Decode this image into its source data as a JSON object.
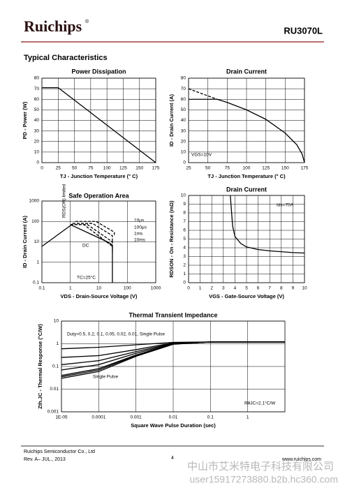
{
  "header": {
    "logo": "Ruichips",
    "logo_mark": "®",
    "part": "RU3070L"
  },
  "section_title": "Typical Characteristics",
  "chart_data": [
    {
      "type": "line",
      "title": "Power Dissipation",
      "xlabel": "TJ - Junction Temperature (° C)",
      "ylabel": "PD - Power (W)",
      "xlim": [
        0,
        175
      ],
      "ylim": [
        0,
        80
      ],
      "xticks": [
        0,
        25,
        50,
        75,
        100,
        125,
        150,
        175
      ],
      "yticks": [
        0,
        10,
        20,
        30,
        40,
        50,
        60,
        70,
        80
      ],
      "grid": true,
      "series": [
        {
          "color": "#000000",
          "x": [
            0,
            25,
            175
          ],
          "values": [
            71,
            71,
            0
          ]
        }
      ],
      "annotations": []
    },
    {
      "type": "line",
      "title": "Drain Current",
      "xlabel": "TJ - Junction Temperature (° C)",
      "ylabel": "ID - Drain Current (A)",
      "xlim": [
        25,
        175
      ],
      "ylim": [
        0,
        80
      ],
      "xticks": [
        25,
        50,
        75,
        100,
        125,
        150,
        175
      ],
      "yticks": [
        0,
        10,
        20,
        30,
        40,
        50,
        60,
        70,
        80
      ],
      "grid": true,
      "series": [
        {
          "color": "#000000",
          "x": [
            25,
            62,
            75,
            100,
            125,
            150,
            165,
            172,
            175
          ],
          "values": [
            60,
            60,
            57,
            50,
            41,
            28,
            17,
            8,
            0
          ]
        },
        {
          "color": "#000000",
          "style": "dashed",
          "x": [
            25,
            62
          ],
          "values": [
            70,
            60
          ]
        }
      ],
      "annotations": [
        "VGS=10V"
      ]
    },
    {
      "type": "line",
      "title": "Safe Operation Area",
      "xlabel": "VDS - Drain-Source Voltage (V)",
      "ylabel": "ID - Drain Current (A)",
      "xscale": "log",
      "yscale": "log",
      "xlim": [
        0.1,
        1000
      ],
      "ylim": [
        0.1,
        1000
      ],
      "xticks": [
        0.1,
        1,
        10,
        100,
        1000
      ],
      "yticks": [
        0.1,
        1,
        10,
        100,
        1000
      ],
      "grid": true,
      "series": [
        {
          "name": "RDS(ON) limited",
          "color": "#000000",
          "x": [
            0.1,
            1.2
          ],
          "values": [
            6,
            75
          ]
        },
        {
          "name": "10μs",
          "color": "#000000",
          "style": "dashed",
          "x": [
            1.5,
            8,
            35,
            35
          ],
          "values": [
            100,
            100,
            30,
            20
          ]
        },
        {
          "name": "100μs",
          "color": "#000000",
          "style": "dashed",
          "x": [
            1.2,
            6,
            30,
            30
          ],
          "values": [
            80,
            80,
            20,
            10
          ]
        },
        {
          "name": "1ms",
          "color": "#000000",
          "style": "dashed",
          "x": [
            1,
            4,
            30,
            30
          ],
          "values": [
            70,
            70,
            10,
            5
          ]
        },
        {
          "name": "10ms",
          "color": "#000000",
          "style": "dashed",
          "x": [
            1,
            3,
            30,
            30
          ],
          "values": [
            70,
            70,
            6,
            3
          ]
        },
        {
          "name": "DC",
          "color": "#000000",
          "x": [
            1,
            20,
            30,
            30
          ],
          "values": [
            70,
            10,
            7,
            0.1
          ]
        }
      ],
      "annotations": [
        "TC=25°C"
      ]
    },
    {
      "type": "line",
      "title": "Drain Current",
      "xlabel": "VGS - Gate-Source Voltage (V)",
      "ylabel": "RDSON - On - Resistance (mΩ)",
      "xlim": [
        0,
        10
      ],
      "ylim": [
        0,
        10
      ],
      "xticks": [
        0,
        1,
        2,
        3,
        4,
        5,
        6,
        7,
        8,
        9,
        10
      ],
      "yticks": [
        0,
        1,
        2,
        3,
        4,
        5,
        6,
        7,
        8,
        9,
        10
      ],
      "grid": true,
      "series": [
        {
          "color": "#000000",
          "x": [
            3.6,
            3.8,
            4,
            4.5,
            5,
            6,
            7,
            8,
            9,
            10
          ],
          "values": [
            10,
            6.5,
            5.3,
            4.5,
            4.1,
            3.8,
            3.65,
            3.55,
            3.45,
            3.4
          ]
        }
      ],
      "annotations": [
        "Ids=70A"
      ]
    },
    {
      "type": "line",
      "title": "Thermal Transient Impedance",
      "xlabel": "Square Wave Pulse Duration (sec)",
      "ylabel": "Zth.JC - Thermal Response (°C/W)",
      "xscale": "log",
      "yscale": "log",
      "xlim": [
        1e-05,
        10
      ],
      "ylim": [
        0.001,
        10
      ],
      "xticks": [
        {
          "value": 1e-05,
          "label": "1E-05"
        },
        0.0001,
        0.001,
        0.01,
        0.1,
        1
      ],
      "yticks": [
        0.001,
        0.01,
        0.1,
        1,
        10
      ],
      "grid": true,
      "series": [
        {
          "color": "#000000",
          "x": [
            1e-05,
            0.0001,
            0.001,
            0.01,
            0.1,
            10
          ],
          "values": [
            0.6,
            0.7,
            0.9,
            1.15,
            1.2,
            1.2
          ]
        },
        {
          "color": "#000000",
          "x": [
            1e-05,
            0.0001,
            0.001,
            0.01,
            0.1,
            10
          ],
          "values": [
            0.25,
            0.3,
            0.55,
            1.1,
            1.2,
            1.2
          ]
        },
        {
          "color": "#000000",
          "x": [
            1e-05,
            0.0001,
            0.001,
            0.01,
            0.1,
            10
          ],
          "values": [
            0.12,
            0.18,
            0.45,
            1.05,
            1.2,
            1.2
          ]
        },
        {
          "color": "#000000",
          "x": [
            1e-05,
            0.0001,
            0.001,
            0.01,
            0.1,
            10
          ],
          "values": [
            0.07,
            0.12,
            0.38,
            1.0,
            1.2,
            1.2
          ]
        },
        {
          "color": "#000000",
          "x": [
            1e-05,
            0.0001,
            0.001,
            0.01,
            0.1,
            10
          ],
          "values": [
            0.04,
            0.08,
            0.32,
            0.98,
            1.2,
            1.2
          ]
        },
        {
          "color": "#000000",
          "x": [
            1e-05,
            0.0001,
            0.001,
            0.01,
            0.1,
            10
          ],
          "values": [
            0.035,
            0.07,
            0.3,
            0.97,
            1.2,
            1.2
          ]
        },
        {
          "name": "Single Pulse",
          "color": "#000000",
          "x": [
            1e-05,
            0.0001,
            0.001,
            0.01,
            0.1,
            10
          ],
          "values": [
            0.03,
            0.06,
            0.28,
            0.95,
            1.2,
            1.2
          ]
        }
      ],
      "annotations": [
        "Duty=0.5, 0.2, 0.1, 0.05, 0.02, 0.01, Single Pulse",
        "RθJC=2.1°C/W"
      ]
    }
  ],
  "footer": {
    "company": "Ruichips Semiconductor Co., Ltd",
    "rev": "Rev. A– JUL., 2013",
    "page": "4",
    "url": "www.ruichips.com"
  },
  "watermark": {
    "company": "中山市艾米特电子科技有限公司",
    "user": "user15917273880.b2b.hc360.com"
  }
}
